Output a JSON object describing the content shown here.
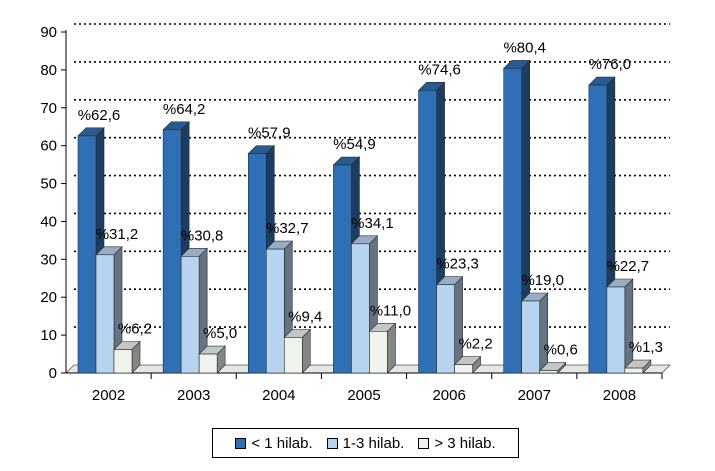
{
  "chart_data": {
    "type": "bar",
    "variant": "3d-clustered-column",
    "categories": [
      "2002",
      "2003",
      "2004",
      "2005",
      "2006",
      "2007",
      "2008"
    ],
    "series": [
      {
        "name": "< 1 hilab.",
        "values": [
          62.6,
          64.2,
          57.9,
          54.9,
          74.6,
          80.4,
          76.0
        ],
        "labels": [
          "%62,6",
          "%64,2",
          "%57,9",
          "%54,9",
          "%74,6",
          "%80,4",
          "%76,0"
        ],
        "color": "#2E6FB5"
      },
      {
        "name": "1-3 hilab.",
        "values": [
          31.2,
          30.8,
          32.7,
          34.1,
          23.3,
          19.0,
          22.7
        ],
        "labels": [
          "%31,2",
          "%30,8",
          "%32,7",
          "%34,1",
          "%23,3",
          "%19,0",
          "%22,7"
        ],
        "color": "#B7D3F0"
      },
      {
        "name": "> 3 hilab.",
        "values": [
          6.2,
          5.0,
          9.4,
          11.0,
          2.2,
          0.6,
          1.3
        ],
        "labels": [
          "%6,2",
          "%5,0",
          "%9,4",
          "%11,0",
          "%2,2",
          "%0,6",
          "%1,3"
        ],
        "color": "#EEF3EE"
      }
    ],
    "yticks": [
      "0",
      "10",
      "20",
      "30",
      "40",
      "50",
      "60",
      "70",
      "80",
      "90"
    ],
    "ylim": [
      0,
      90
    ],
    "grid": true,
    "legend_position": "bottom"
  }
}
